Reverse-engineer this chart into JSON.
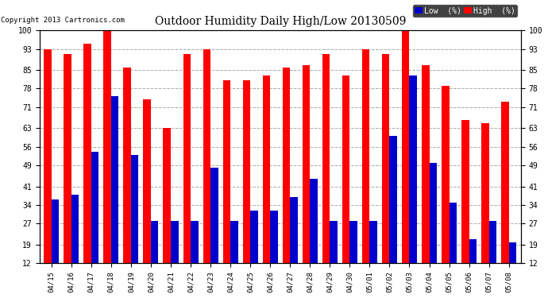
{
  "title": "Outdoor Humidity Daily High/Low 20130509",
  "copyright": "Copyright 2013 Cartronics.com",
  "background_color": "#ffffff",
  "plot_bg_color": "#ffffff",
  "bar_color_high": "#ff0000",
  "bar_color_low": "#0000cc",
  "dates": [
    "04/15",
    "04/16",
    "04/17",
    "04/18",
    "04/19",
    "04/20",
    "04/21",
    "04/22",
    "04/23",
    "04/24",
    "04/25",
    "04/26",
    "04/27",
    "04/28",
    "04/29",
    "04/30",
    "05/01",
    "05/02",
    "05/03",
    "05/04",
    "05/05",
    "05/06",
    "05/07",
    "05/08"
  ],
  "high": [
    93,
    91,
    95,
    100,
    86,
    74,
    63,
    91,
    93,
    81,
    81,
    83,
    86,
    87,
    91,
    83,
    93,
    91,
    100,
    87,
    79,
    66,
    65,
    73
  ],
  "low": [
    36,
    38,
    54,
    75,
    53,
    28,
    28,
    28,
    48,
    28,
    32,
    32,
    37,
    44,
    28,
    28,
    28,
    60,
    83,
    50,
    35,
    21,
    28,
    20
  ],
  "ylim": [
    12,
    100
  ],
  "yticks": [
    12,
    19,
    27,
    34,
    41,
    49,
    56,
    63,
    71,
    78,
    85,
    93,
    100
  ],
  "grid_color": "#aaaaaa",
  "bar_width": 0.38,
  "legend_labels": [
    "Low  (%)",
    "High  (%)"
  ],
  "legend_colors": [
    "#0000cc",
    "#ff0000"
  ]
}
